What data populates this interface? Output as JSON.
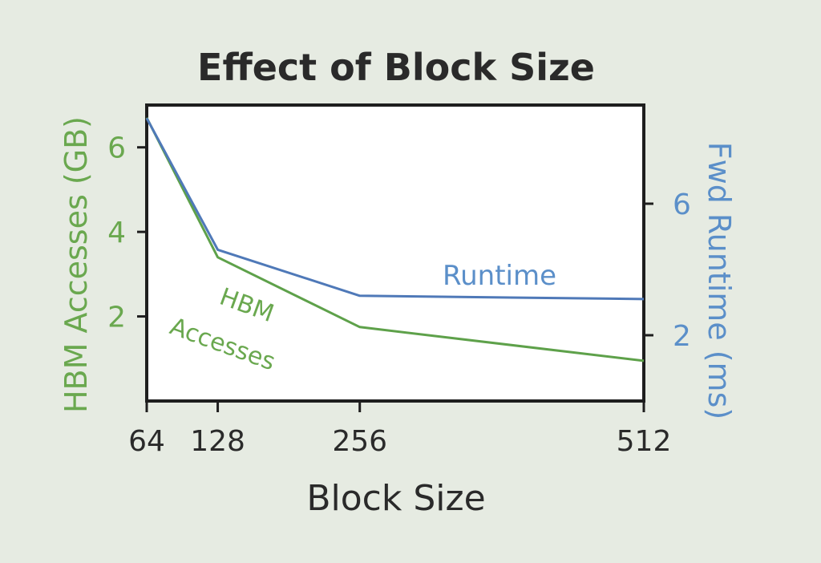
{
  "chart_data": {
    "type": "line",
    "title": "Effect of Block Size",
    "xlabel": "Block Size",
    "ylabel_left": "HBM Accesses (GB)",
    "ylabel_right": "Fwd Runtime (ms)",
    "x": [
      64,
      128,
      256,
      512
    ],
    "xlim": [
      64,
      512
    ],
    "ylim_left": [
      0,
      7
    ],
    "ylim_right": [
      0,
      9
    ],
    "yticks_left": [
      2,
      4,
      6
    ],
    "yticks_right": [
      2,
      6
    ],
    "series": [
      {
        "name": "HBM Accesses",
        "axis": "left",
        "color": "#5ea14a",
        "values": [
          6.7,
          3.4,
          1.75,
          0.95
        ]
      },
      {
        "name": "Runtime",
        "axis": "right",
        "color": "#4f79b8",
        "values": [
          8.6,
          4.6,
          3.2,
          3.1
        ]
      }
    ],
    "annotations": {
      "hbm_line1": "HBM",
      "hbm_line2": "Accesses",
      "runtime": "Runtime"
    },
    "grid": false,
    "legend": "none"
  }
}
